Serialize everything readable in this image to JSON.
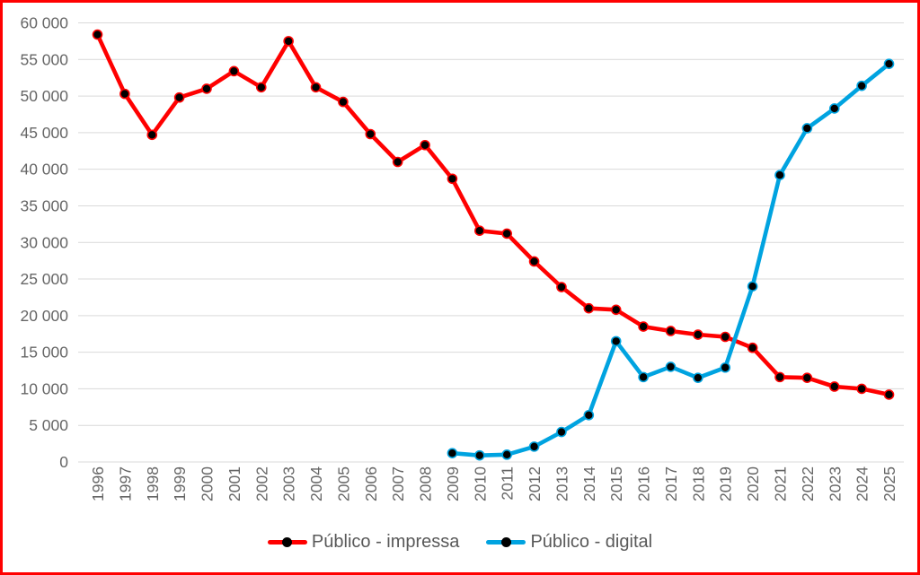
{
  "frame": {
    "border_color": "#FF0000",
    "background_color": "#FFFFFF"
  },
  "chart_data": {
    "type": "line",
    "title": "",
    "xlabel": "",
    "ylabel": "",
    "x_categories": [
      "1996",
      "1997",
      "1998",
      "1999",
      "2000",
      "2001",
      "2002",
      "2003",
      "2004",
      "2005",
      "2006",
      "2007",
      "2008",
      "2009",
      "2010",
      "2011",
      "2012",
      "2013",
      "2014",
      "2015",
      "2016",
      "2017",
      "2018",
      "2019",
      "2020",
      "2021",
      "2022",
      "2023",
      "2024",
      "2025"
    ],
    "ylim": [
      0,
      60000
    ],
    "ytick_step": 5000,
    "ytick_labels": [
      "0",
      "5 000",
      "10 000",
      "15 000",
      "20 000",
      "25 000",
      "30 000",
      "35 000",
      "40 000",
      "45 000",
      "50 000",
      "55 000",
      "60 000"
    ],
    "grid": "horizontal",
    "gridline_color": "#D9D9D9",
    "axis_text_color": "#666666",
    "marker_color": "#000000",
    "legend_position": "bottom",
    "series": [
      {
        "name": "Público - impressa",
        "color": "#FF0000",
        "values": [
          58400,
          50300,
          44700,
          49800,
          51000,
          53400,
          51200,
          57500,
          51200,
          49200,
          44800,
          41000,
          43300,
          38700,
          31600,
          31200,
          27400,
          23900,
          21000,
          20800,
          18500,
          17900,
          17400,
          17100,
          15600,
          11600,
          11500,
          10300,
          10000,
          9200
        ]
      },
      {
        "name": "Público - digital",
        "color": "#00A3E0",
        "values": [
          null,
          null,
          null,
          null,
          null,
          null,
          null,
          null,
          null,
          null,
          null,
          null,
          null,
          1200,
          900,
          1000,
          2100,
          4100,
          6400,
          16500,
          11600,
          13000,
          11500,
          12900,
          24000,
          39200,
          45600,
          48300,
          51400,
          54400
        ]
      }
    ]
  }
}
